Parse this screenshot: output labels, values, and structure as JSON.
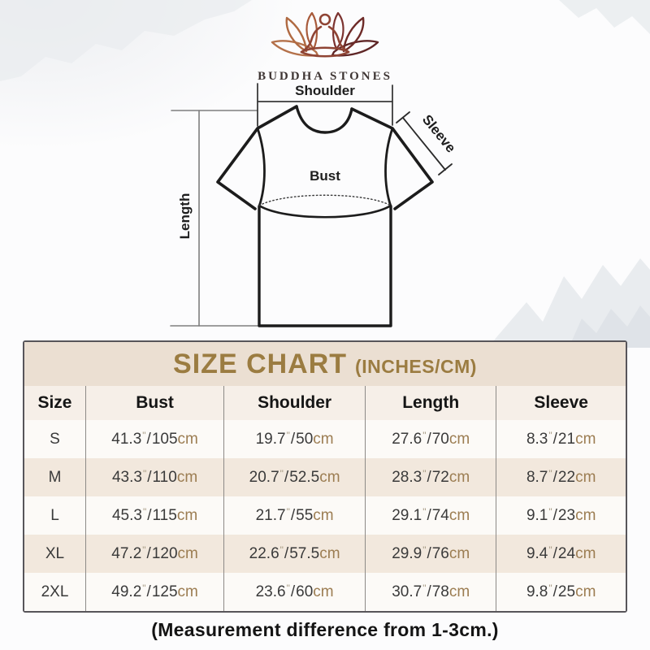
{
  "brand": {
    "name": "BUDDHA STONES"
  },
  "diagram": {
    "shoulder_label": "Shoulder",
    "sleeve_label": "Sleeve",
    "bust_label": "Bust",
    "length_label": "Length"
  },
  "units": {
    "inch": "\"",
    "cm": "cm",
    "separator": "/"
  },
  "size_chart": {
    "title": "SIZE CHART",
    "subtitle": "(INCHES/CM)",
    "columns": [
      "Size",
      "Bust",
      "Shoulder",
      "Length",
      "Sleeve"
    ],
    "rows": [
      {
        "size": "S",
        "bust": {
          "in": "41.3",
          "cm": "105"
        },
        "shoulder": {
          "in": "19.7",
          "cm": "50"
        },
        "length": {
          "in": "27.6",
          "cm": "70"
        },
        "sleeve": {
          "in": "8.3",
          "cm": "21"
        }
      },
      {
        "size": "M",
        "bust": {
          "in": "43.3",
          "cm": "110"
        },
        "shoulder": {
          "in": "20.7",
          "cm": "52.5"
        },
        "length": {
          "in": "28.3",
          "cm": "72"
        },
        "sleeve": {
          "in": "8.7",
          "cm": "22"
        }
      },
      {
        "size": "L",
        "bust": {
          "in": "45.3",
          "cm": "115"
        },
        "shoulder": {
          "in": "21.7",
          "cm": "55"
        },
        "length": {
          "in": "29.1",
          "cm": "74"
        },
        "sleeve": {
          "in": "9.1",
          "cm": "23"
        }
      },
      {
        "size": "XL",
        "bust": {
          "in": "47.2",
          "cm": "120"
        },
        "shoulder": {
          "in": "22.6",
          "cm": "57.5"
        },
        "length": {
          "in": "29.9",
          "cm": "76"
        },
        "sleeve": {
          "in": "9.4",
          "cm": "24"
        }
      },
      {
        "size": "2XL",
        "bust": {
          "in": "49.2",
          "cm": "125"
        },
        "shoulder": {
          "in": "23.6",
          "cm": "60"
        },
        "length": {
          "in": "30.7",
          "cm": "78"
        },
        "sleeve": {
          "in": "9.8",
          "cm": "25"
        }
      }
    ]
  },
  "footnote": "(Measurement difference from 1-3cm.)",
  "colors": {
    "accent_gold": "#9b7c41",
    "title_band_beige": "#ebdfd2",
    "header_row_beige": "#f6efe8",
    "alt_row_beige": "#f2e8dd",
    "unit_brown": "#9c7d52",
    "inch_mark_brown": "#a69a83",
    "table_border": "#57555a",
    "logo_left_brown": "#b06a42",
    "logo_right_maroon": "#6e2b28",
    "logo_figure_brown": "#8f4434"
  },
  "chart_data": {
    "type": "table",
    "title": "SIZE CHART (INCHES/CM)",
    "columns": [
      "Size",
      "Bust",
      "Shoulder",
      "Length",
      "Sleeve"
    ],
    "rows": [
      [
        "S",
        "41.3\"/105cm",
        "19.7\"/50cm",
        "27.6\"/70cm",
        "8.3\"/21cm"
      ],
      [
        "M",
        "43.3\"/110cm",
        "20.7\"/52.5cm",
        "28.3\"/72cm",
        "8.7\"/22cm"
      ],
      [
        "L",
        "45.3\"/115cm",
        "21.7\"/55cm",
        "29.1\"/74cm",
        "9.1\"/23cm"
      ],
      [
        "XL",
        "47.2\"/120cm",
        "22.6\"/57.5cm",
        "29.9\"/76cm",
        "9.4\"/24cm"
      ],
      [
        "2XL",
        "49.2\"/125cm",
        "23.6\"/60cm",
        "30.7\"/78cm",
        "9.8\"/25cm"
      ]
    ],
    "footnote": "(Measurement difference from 1-3cm.)"
  }
}
